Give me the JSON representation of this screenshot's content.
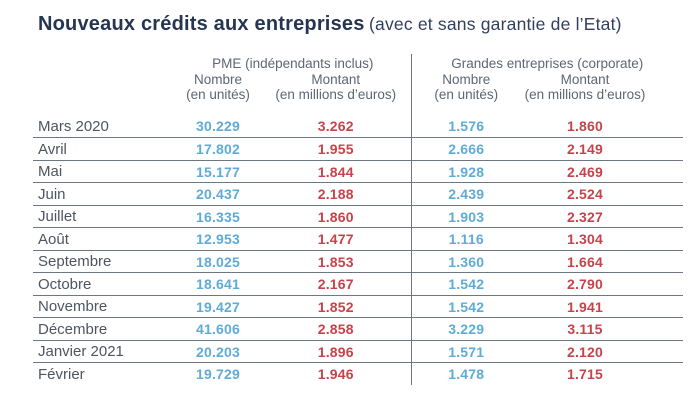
{
  "title": {
    "main": "Nouveaux crédits aux entreprises",
    "subtitle": "(avec et sans garantie de l’Etat)"
  },
  "table": {
    "groups": [
      {
        "label": "PME (indépendants inclus)"
      },
      {
        "label": "Grandes entreprises (corporate)"
      }
    ],
    "subheaders": {
      "nombre": "Nombre",
      "nombre_unit": "(en unités)",
      "montant": "Montant",
      "montant_unit": "(en millions d’euros)"
    },
    "rows": [
      {
        "month": "Mars 2020",
        "pme_nombre": "30.229",
        "pme_montant": "3.262",
        "ge_nombre": "1.576",
        "ge_montant": "1.860"
      },
      {
        "month": "Avril",
        "pme_nombre": "17.802",
        "pme_montant": "1.955",
        "ge_nombre": "2.666",
        "ge_montant": "2.149"
      },
      {
        "month": "Mai",
        "pme_nombre": "15.177",
        "pme_montant": "1.844",
        "ge_nombre": "1.928",
        "ge_montant": "2.469"
      },
      {
        "month": "Juin",
        "pme_nombre": "20.437",
        "pme_montant": "2.188",
        "ge_nombre": "2.439",
        "ge_montant": "2.524"
      },
      {
        "month": "Juillet",
        "pme_nombre": "16.335",
        "pme_montant": "1.860",
        "ge_nombre": "1.903",
        "ge_montant": "2.327"
      },
      {
        "month": "Août",
        "pme_nombre": "12.953",
        "pme_montant": "1.477",
        "ge_nombre": "1.116",
        "ge_montant": "1.304"
      },
      {
        "month": "Septembre",
        "pme_nombre": "18.025",
        "pme_montant": "1.853",
        "ge_nombre": "1.360",
        "ge_montant": "1.664"
      },
      {
        "month": "Octobre",
        "pme_nombre": "18.641",
        "pme_montant": "2.167",
        "ge_nombre": "1.542",
        "ge_montant": "2.790"
      },
      {
        "month": "Novembre",
        "pme_nombre": "19.427",
        "pme_montant": "1.852",
        "ge_nombre": "1.542",
        "ge_montant": "1.941"
      },
      {
        "month": "Décembre",
        "pme_nombre": "41.606",
        "pme_montant": "2.858",
        "ge_nombre": "3.229",
        "ge_montant": "3.115"
      },
      {
        "month": "Janvier 2021",
        "pme_nombre": "20.203",
        "pme_montant": "1.896",
        "ge_nombre": "1.571",
        "ge_montant": "2.120"
      },
      {
        "month": "Février",
        "pme_nombre": "19.729",
        "pme_montant": "1.946",
        "ge_nombre": "1.478",
        "ge_montant": "1.715"
      }
    ]
  },
  "colors": {
    "navy": "#263551",
    "navy_light": "#31405e",
    "header_gray": "#5d6673",
    "month_gray": "#4e5560",
    "number_blue": "#5fabd7",
    "number_red": "#c7434b",
    "line_gray": "#6e7681"
  }
}
